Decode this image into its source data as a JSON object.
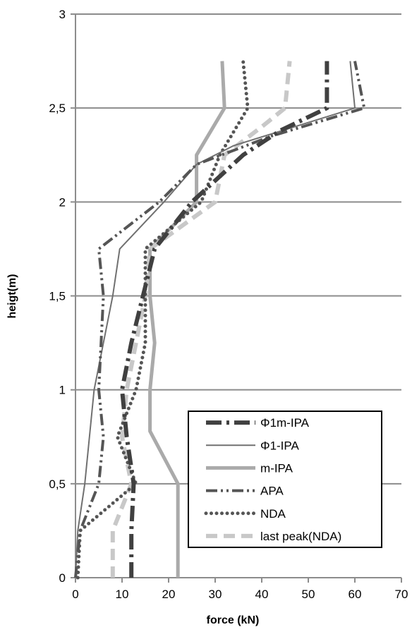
{
  "chart_data": {
    "type": "line",
    "title": "",
    "xlabel": "force (kN)",
    "ylabel": "heigt(m)",
    "xlim": [
      0,
      70
    ],
    "ylim": [
      0,
      3
    ],
    "x_ticks": [
      "0",
      "10",
      "20",
      "30",
      "40",
      "50",
      "60",
      "70"
    ],
    "y_ticks": [
      "0",
      "0,5",
      "1",
      "1,5",
      "2",
      "2,5",
      "3"
    ],
    "grid": "horizontal",
    "legend_position": "bottom-right",
    "series": [
      {
        "name": "Φ1m-IPA",
        "color": "#404040",
        "style": "long-dash-dot",
        "points": [
          [
            12,
            0
          ],
          [
            12,
            0.25
          ],
          [
            12.5,
            0.5
          ],
          [
            11,
            0.75
          ],
          [
            10,
            1.0
          ],
          [
            12,
            1.25
          ],
          [
            14.5,
            1.5
          ],
          [
            17,
            1.75
          ],
          [
            25,
            2.0
          ],
          [
            36,
            2.25
          ],
          [
            44,
            2.38
          ],
          [
            54,
            2.5
          ],
          [
            54,
            2.75
          ]
        ]
      },
      {
        "name": "Φ1-IPA",
        "color": "#707070",
        "style": "solid-thin",
        "points": [
          [
            0,
            0
          ],
          [
            0.5,
            0.25
          ],
          [
            2,
            0.5
          ],
          [
            3,
            0.75
          ],
          [
            4,
            1.0
          ],
          [
            6,
            1.25
          ],
          [
            8,
            1.5
          ],
          [
            9.5,
            1.75
          ],
          [
            19,
            2.0
          ],
          [
            26,
            2.2
          ],
          [
            34,
            2.3
          ],
          [
            47,
            2.4
          ],
          [
            60,
            2.5
          ],
          [
            59,
            2.75
          ]
        ]
      },
      {
        "name": "m-IPA",
        "color": "#aaaaaa",
        "style": "solid-thick",
        "points": [
          [
            22,
            0
          ],
          [
            22,
            0.25
          ],
          [
            22,
            0.5
          ],
          [
            16,
            0.78
          ],
          [
            16,
            1.0
          ],
          [
            17,
            1.25
          ],
          [
            16,
            1.5
          ],
          [
            16,
            1.75
          ],
          [
            26,
            2.0
          ],
          [
            26,
            2.25
          ],
          [
            32,
            2.5
          ],
          [
            31.5,
            2.75
          ]
        ]
      },
      {
        "name": "APA",
        "color": "#555555",
        "style": "long-dash-dot-dot",
        "points": [
          [
            0,
            0
          ],
          [
            1,
            0.25
          ],
          [
            5,
            0.5
          ],
          [
            6,
            0.75
          ],
          [
            5,
            1.0
          ],
          [
            5.5,
            1.25
          ],
          [
            6,
            1.5
          ],
          [
            5,
            1.75
          ],
          [
            18,
            2.0
          ],
          [
            26,
            2.2
          ],
          [
            42,
            2.35
          ],
          [
            62,
            2.5
          ],
          [
            60,
            2.75
          ]
        ]
      },
      {
        "name": "NDA",
        "color": "#555555",
        "style": "dotted",
        "points": [
          [
            0.5,
            0
          ],
          [
            1,
            0.25
          ],
          [
            13,
            0.5
          ],
          [
            9,
            0.75
          ],
          [
            13,
            1.0
          ],
          [
            15,
            1.25
          ],
          [
            15,
            1.5
          ],
          [
            15,
            1.75
          ],
          [
            27,
            2.0
          ],
          [
            31,
            2.25
          ],
          [
            37,
            2.5
          ],
          [
            36,
            2.75
          ]
        ]
      },
      {
        "name": "last peak(NDA)",
        "color": "#c8c8c8",
        "style": "dashed-thick",
        "points": [
          [
            8,
            0
          ],
          [
            8,
            0.25
          ],
          [
            12,
            0.5
          ],
          [
            10,
            0.75
          ],
          [
            11,
            1.0
          ],
          [
            13,
            1.25
          ],
          [
            15,
            1.5
          ],
          [
            16,
            1.75
          ],
          [
            30,
            2.0
          ],
          [
            32,
            2.25
          ],
          [
            40,
            2.4
          ],
          [
            45,
            2.5
          ],
          [
            46,
            2.75
          ]
        ]
      }
    ]
  }
}
